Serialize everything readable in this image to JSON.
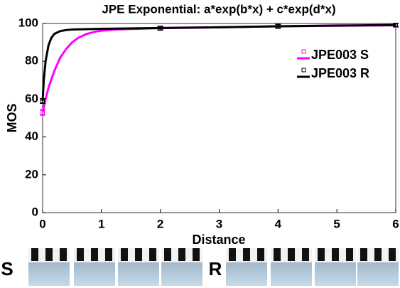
{
  "chart_data": {
    "type": "line",
    "title": "JPE Exponential: a*exp(b*x) + c*exp(d*x)",
    "xlabel": "Distance",
    "ylabel": "MOS",
    "xlim": [
      0,
      6
    ],
    "xticks": [
      0,
      1,
      2,
      3,
      4,
      5,
      6
    ],
    "ylim": [
      0,
      100
    ],
    "yticks": [
      0,
      20,
      40,
      60,
      80,
      100
    ],
    "legend": "upper right",
    "series": [
      {
        "name": "JPE003 S",
        "color": "#ff00ff",
        "x": [
          0,
          2,
          4,
          6
        ],
        "values": [
          53,
          97.5,
          98.5,
          99
        ],
        "errors": [
          1.5,
          1,
          1,
          1
        ],
        "fit": {
          "x": [
            0,
            0.05,
            0.1,
            0.2,
            0.3,
            0.4,
            0.5,
            0.6,
            0.75,
            0.9,
            1,
            1.25,
            1.5,
            2,
            3,
            4,
            5,
            6
          ],
          "values": [
            53,
            60,
            66,
            75,
            82,
            86.5,
            90,
            92.3,
            94.5,
            95.7,
            96.2,
            96.8,
            97.1,
            97.5,
            98,
            98.5,
            98.8,
            99
          ]
        }
      },
      {
        "name": "JPE003 R",
        "color": "#000000",
        "x": [
          0,
          2,
          4,
          6
        ],
        "values": [
          59,
          97.5,
          98.5,
          99.2
        ],
        "errors": [
          1.2,
          1,
          1,
          0.8
        ],
        "fit": {
          "x": [
            0,
            0.02,
            0.05,
            0.1,
            0.15,
            0.2,
            0.3,
            0.4,
            0.5,
            0.75,
            1,
            2,
            3,
            4,
            5,
            6
          ],
          "values": [
            59,
            70,
            80,
            88.5,
            92.5,
            94.5,
            96,
            96.5,
            96.8,
            97,
            97.2,
            97.6,
            98,
            98.5,
            98.9,
            99.2
          ]
        }
      }
    ],
    "panel_labels": [
      "S",
      "R"
    ]
  }
}
